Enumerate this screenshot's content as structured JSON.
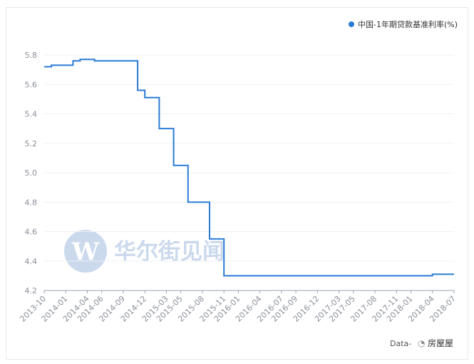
{
  "chart_data": {
    "type": "line",
    "legend_position": "top-right",
    "grid": true,
    "ylim": [
      4.2,
      5.8
    ],
    "y_ticks": [
      "4.2",
      "4.4",
      "4.6",
      "4.8",
      "5.0",
      "5.2",
      "5.4",
      "5.6",
      "5.8"
    ],
    "x_ticks": [
      "2013-10",
      "2014-01",
      "2014-04",
      "2014-06",
      "2014-09",
      "2014-12",
      "2015-03",
      "2015-05",
      "2015-08",
      "2015-11",
      "2016-01",
      "2016-04",
      "2016-07",
      "2016-09",
      "2016-12",
      "2017-03",
      "2017-05",
      "2017-08",
      "2017-11",
      "2018-01",
      "2018-04",
      "2018-07"
    ],
    "series": [
      {
        "name": "中国-1年期贷款基准利率(%)",
        "color": "#2b7bd6",
        "points": [
          [
            "2013-10",
            5.72
          ],
          [
            "2013-11",
            5.73
          ],
          [
            "2014-01",
            5.73
          ],
          [
            "2014-02",
            5.76
          ],
          [
            "2014-03",
            5.77
          ],
          [
            "2014-05",
            5.76
          ],
          [
            "2014-06",
            5.76
          ],
          [
            "2014-09",
            5.76
          ],
          [
            "2014-11",
            5.56
          ],
          [
            "2014-12",
            5.51
          ],
          [
            "2015-02",
            5.3
          ],
          [
            "2015-03",
            5.3
          ],
          [
            "2015-04",
            5.05
          ],
          [
            "2015-05",
            5.05
          ],
          [
            "2015-06",
            4.8
          ],
          [
            "2015-08",
            4.8
          ],
          [
            "2015-09",
            4.55
          ],
          [
            "2015-10",
            4.55
          ],
          [
            "2015-11",
            4.3
          ],
          [
            "2016-01",
            4.3
          ],
          [
            "2016-07",
            4.3
          ],
          [
            "2017-01",
            4.3
          ],
          [
            "2017-07",
            4.3
          ],
          [
            "2018-01",
            4.3
          ],
          [
            "2018-04",
            4.31
          ],
          [
            "2018-07",
            4.31
          ]
        ]
      }
    ]
  },
  "watermark": {
    "logo_letter": "W",
    "text": "华尔街见闻"
  },
  "credit": {
    "prefix": "Data-",
    "suffix": "房屋屋"
  }
}
